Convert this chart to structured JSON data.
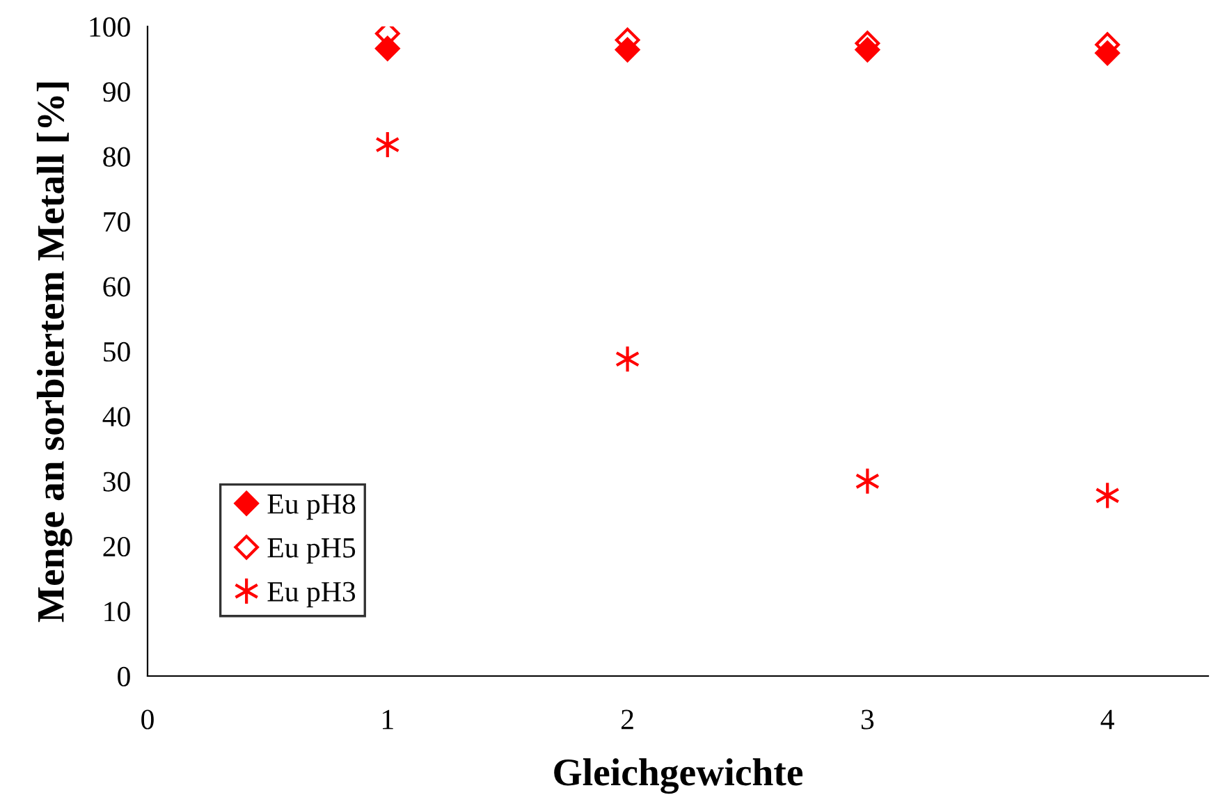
{
  "chart_data": {
    "type": "scatter",
    "xlabel": "Gleichgewichte",
    "ylabel": "Menge an sorbiertem Metall [%]",
    "xlim": [
      0,
      4.42
    ],
    "xticks": [
      0,
      1,
      2,
      3,
      4
    ],
    "ylim": [
      0,
      100
    ],
    "yticks": [
      0,
      10,
      20,
      30,
      40,
      50,
      60,
      70,
      80,
      90,
      100
    ],
    "grid": false,
    "legend": "bottom left",
    "series": [
      {
        "name": "Eu pH8",
        "color": "#ff0000",
        "marker": "diamond",
        "x": [
          1,
          2,
          3,
          4
        ],
        "values": [
          96.6,
          96.4,
          96.4,
          95.9
        ]
      },
      {
        "name": "Eu pH5",
        "color": "#ff0000",
        "marker": "diamond",
        "x": [
          1,
          2,
          3,
          4
        ],
        "values": [
          98.9,
          97.9,
          97.4,
          97.2
        ]
      },
      {
        "name": "Eu pH3",
        "color": "#ff0000",
        "marker": "cross",
        "x": [
          1,
          2,
          3,
          4
        ],
        "values": [
          81.8,
          48.8,
          30.0,
          27.8
        ]
      }
    ]
  }
}
